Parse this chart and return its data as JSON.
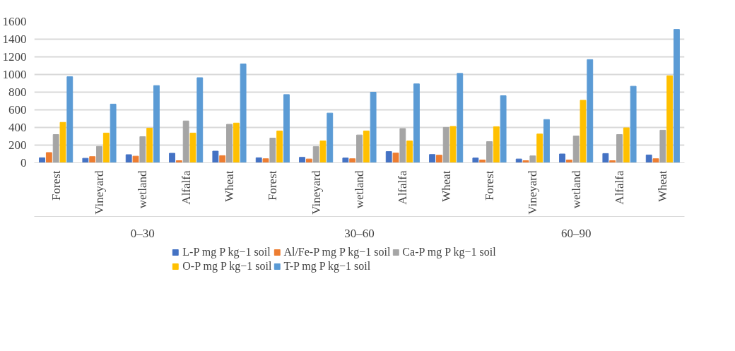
{
  "chart_data": {
    "type": "bar",
    "categories": [
      "Forest",
      "Vineyard",
      "wetland",
      "Alfalfa",
      "Wheat",
      "Forest",
      "Vineyard",
      "wetland",
      "Alfalfa",
      "Wheat",
      "Forest",
      "Vineyard",
      "wetland",
      "Alfalfa",
      "Wheat"
    ],
    "annotations": [
      "0–30",
      "30–60",
      "60–90"
    ],
    "series": [
      {
        "name": "L-P mg P kg−1 soil",
        "color": "#4472c4",
        "values": [
          57,
          51,
          92,
          108,
          132,
          57,
          62,
          54,
          127,
          94,
          54,
          43,
          100,
          105,
          89
        ]
      },
      {
        "name": "Al/Fe-P mg P kg−1 soil",
        "color": "#ed7d31",
        "values": [
          116,
          70,
          75,
          24,
          81,
          46,
          43,
          46,
          110,
          86,
          32,
          24,
          32,
          24,
          46
        ]
      },
      {
        "name": "Ca-P mg P kg−1 soil",
        "color": "#a5a5a5",
        "values": [
          320,
          186,
          296,
          474,
          436,
          280,
          183,
          315,
          388,
          401,
          240,
          78,
          304,
          320,
          369
        ]
      },
      {
        "name": "O-P mg P kg−1 soil",
        "color": "#ffc000",
        "values": [
          458,
          337,
          393,
          337,
          450,
          361,
          248,
          361,
          248,
          412,
          409,
          326,
          708,
          396,
          986
        ]
      },
      {
        "name": "T-P mg P kg−1 soil",
        "color": "#5b9bd5",
        "values": [
          975,
          665,
          875,
          964,
          1120,
          773,
          563,
          800,
          894,
          1013,
          760,
          490,
          1169,
          867,
          1511
        ]
      }
    ],
    "ylim": [
      0,
      1600
    ],
    "yticks": [
      0,
      200,
      400,
      600,
      800,
      1000,
      1200,
      1400,
      1600
    ],
    "grid": "y",
    "legend": "bottom"
  }
}
